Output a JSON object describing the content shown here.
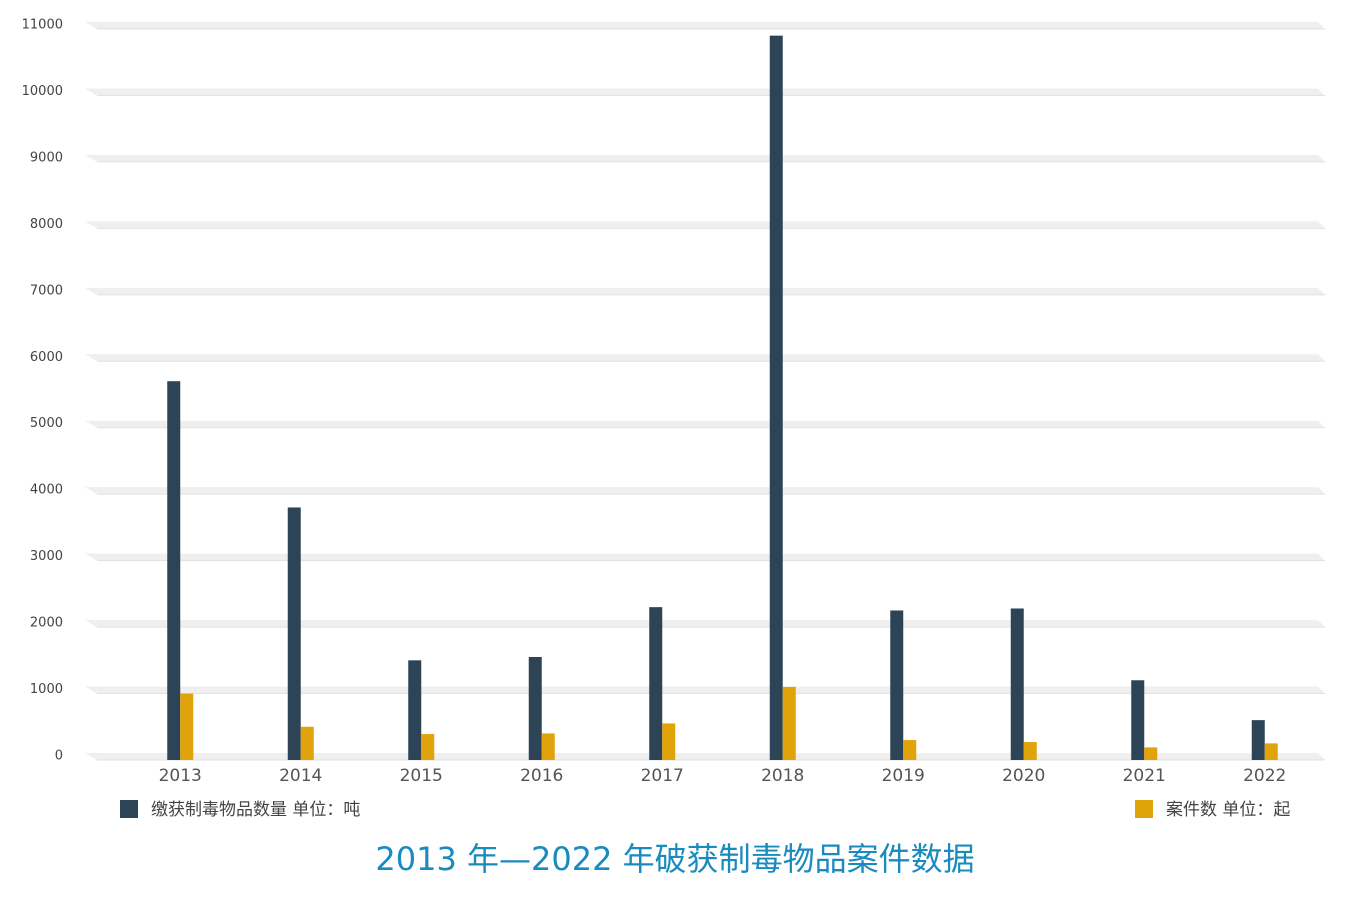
{
  "chart_data": {
    "type": "bar",
    "title": "2013 年—2022 年破获制毒物品案件数据",
    "categories": [
      "2013",
      "2014",
      "2015",
      "2016",
      "2017",
      "2018",
      "2019",
      "2020",
      "2021",
      "2022"
    ],
    "series": [
      {
        "name": "缴获制毒物品数量 单位：吨",
        "color": "#2d4457",
        "values": [
          5700,
          3800,
          1500,
          1550,
          2300,
          10900,
          2250,
          2280,
          1200,
          600
        ]
      },
      {
        "name": "案件数 单位：起",
        "color": "#e0a30a",
        "values": [
          1000,
          500,
          390,
          400,
          550,
          1100,
          300,
          270,
          190,
          250
        ]
      }
    ],
    "ylim": [
      0,
      11000
    ],
    "yticks": [
      0,
      1000,
      2000,
      3000,
      4000,
      5000,
      6000,
      7000,
      8000,
      9000,
      10000,
      11000
    ],
    "grid": true
  }
}
